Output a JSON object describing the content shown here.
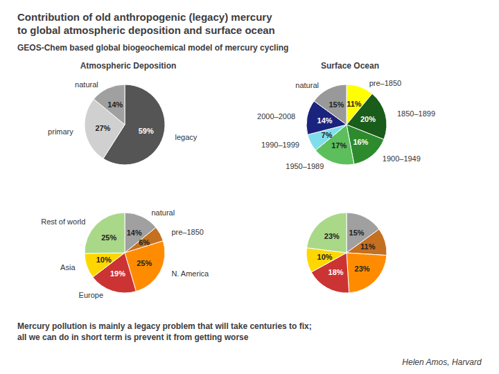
{
  "title": "Contribution of old anthropogenic (legacy) mercury\nto global atmospheric deposition and surface ocean",
  "subtitle": "GEOS-Chem based global biogeochemical model of mercury cycling",
  "annotations": [
    "Mercury pollution is mainly a legacy problem that will take centuries to fix;\nall we can do in short term is prevent it from getting worse",
    "Helen Amos, Harvard"
  ],
  "chart_data": [
    {
      "type": "pie",
      "title": "Atmospheric Deposition",
      "categories": [
        "legacy",
        "primary",
        "natural"
      ],
      "values": [
        59,
        27,
        14
      ],
      "value_labels": [
        "59%",
        "27%",
        "14%"
      ],
      "colors": [
        "#555555",
        "#D0D0D0",
        "#A0A0A0"
      ],
      "data_labels": true
    },
    {
      "type": "pie",
      "title": "Surface Ocean",
      "categories": [
        "pre–1850",
        "1850–1899",
        "1900–1949",
        "1950–1989",
        "1990–1999",
        "2000–2008",
        "natural"
      ],
      "values": [
        11,
        20,
        16,
        17,
        7,
        14,
        15
      ],
      "value_labels": [
        "11%",
        "20%",
        "16%",
        "17%",
        "7%",
        "14%",
        "15%"
      ],
      "colors": [
        "#FFFF00",
        "#1A5C1A",
        "#2D8B2D",
        "#5CBF5C",
        "#80DEEA",
        "#1A237E",
        "#999999"
      ],
      "data_labels": true
    },
    {
      "type": "pie",
      "categories": [
        "natural",
        "pre–1850",
        "N. America",
        "Europe",
        "Asia",
        "Rest of world"
      ],
      "values": [
        14,
        6,
        25,
        19,
        10,
        25
      ],
      "value_labels": [
        "14%",
        "6%",
        "25%",
        "19%",
        "10%",
        "25%"
      ],
      "colors": [
        "#A0A0A0",
        "#C47020",
        "#FF8C00",
        "#CC3333",
        "#FFD700",
        "#A8D888"
      ],
      "data_labels": true
    },
    {
      "type": "pie",
      "values": [
        15,
        11,
        23,
        18,
        10,
        23
      ],
      "value_labels": [
        "15%",
        "11%",
        "23%",
        "18%",
        "10%",
        "23%"
      ],
      "colors": [
        "#A0A0A0",
        "#C47020",
        "#FF8C00",
        "#CC3333",
        "#FFD700",
        "#A8D888"
      ],
      "data_labels": true
    }
  ]
}
